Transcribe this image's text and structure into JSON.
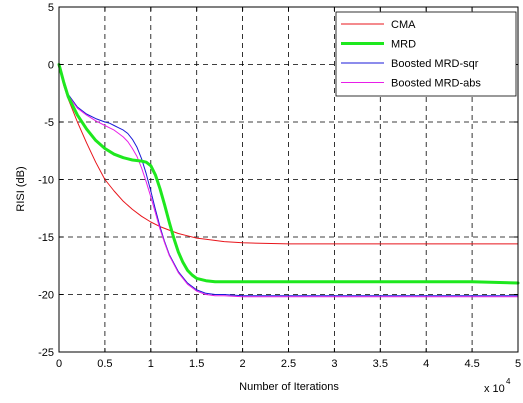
{
  "chart_data": {
    "type": "line",
    "title": "",
    "xlabel": "Number of Iterations",
    "ylabel": "RISI (dB)",
    "x_multiplier_label": "x 10",
    "x_multiplier_exponent": "4",
    "xlim": [
      0,
      5
    ],
    "ylim": [
      -25,
      5
    ],
    "xticks": [
      0,
      0.5,
      1,
      1.5,
      2,
      2.5,
      3,
      3.5,
      4,
      4.5,
      5
    ],
    "xtick_labels": [
      "0",
      "0.5",
      "1",
      "1.5",
      "2",
      "2.5",
      "3",
      "3.5",
      "4",
      "4.5",
      "5"
    ],
    "yticks": [
      -25,
      -20,
      -15,
      -10,
      -5,
      0,
      5
    ],
    "ytick_labels": [
      "-25",
      "-20",
      "-15",
      "-10",
      "-5",
      "0",
      "5"
    ],
    "grid": true,
    "legend_position": "top-right",
    "series": [
      {
        "name": "CMA",
        "color": "#e8151b",
        "width": 1,
        "x": [
          0,
          0.05,
          0.1,
          0.2,
          0.3,
          0.4,
          0.5,
          0.6,
          0.7,
          0.8,
          0.9,
          1.0,
          1.1,
          1.2,
          1.3,
          1.4,
          1.5,
          1.6,
          1.8,
          2.0,
          2.5,
          3.0,
          3.5,
          4.0,
          4.5,
          5.0
        ],
        "y": [
          0,
          -1.8,
          -3.0,
          -5.0,
          -6.8,
          -8.5,
          -10.0,
          -11.0,
          -11.9,
          -12.6,
          -13.2,
          -13.7,
          -14.1,
          -14.4,
          -14.7,
          -14.9,
          -15.1,
          -15.2,
          -15.4,
          -15.5,
          -15.6,
          -15.6,
          -15.6,
          -15.6,
          -15.6,
          -15.6
        ]
      },
      {
        "name": "MRD",
        "color": "#1ee81e",
        "width": 3,
        "x": [
          0,
          0.05,
          0.1,
          0.2,
          0.3,
          0.4,
          0.5,
          0.6,
          0.7,
          0.8,
          0.9,
          0.95,
          1.0,
          1.05,
          1.1,
          1.15,
          1.2,
          1.25,
          1.3,
          1.35,
          1.4,
          1.45,
          1.5,
          1.6,
          1.7,
          1.8,
          2.0,
          2.5,
          3.0,
          3.5,
          4.0,
          4.5,
          5.0
        ],
        "y": [
          0,
          -1.5,
          -2.8,
          -4.4,
          -5.6,
          -6.6,
          -7.3,
          -7.8,
          -8.1,
          -8.3,
          -8.4,
          -8.5,
          -8.8,
          -9.6,
          -10.8,
          -12.2,
          -13.7,
          -15.1,
          -16.3,
          -17.2,
          -17.9,
          -18.3,
          -18.6,
          -18.8,
          -18.9,
          -18.9,
          -18.9,
          -18.9,
          -18.9,
          -18.9,
          -18.9,
          -18.9,
          -19.0
        ]
      },
      {
        "name": "Boosted MRD-sqr",
        "color": "#1a1ad8",
        "width": 1,
        "x": [
          0,
          0.05,
          0.1,
          0.2,
          0.3,
          0.4,
          0.5,
          0.55,
          0.6,
          0.65,
          0.7,
          0.75,
          0.8,
          0.85,
          0.9,
          0.95,
          1.0,
          1.05,
          1.1,
          1.15,
          1.2,
          1.3,
          1.4,
          1.5,
          1.6,
          1.7,
          1.8,
          2.0,
          2.5,
          3.0,
          3.5,
          4.0,
          4.5,
          5.0
        ],
        "y": [
          0,
          -1.6,
          -2.6,
          -3.7,
          -4.3,
          -4.7,
          -5.0,
          -5.1,
          -5.3,
          -5.5,
          -5.7,
          -6.0,
          -6.5,
          -7.2,
          -8.2,
          -9.5,
          -11.0,
          -12.6,
          -14.1,
          -15.4,
          -16.5,
          -18.0,
          -19.0,
          -19.6,
          -19.9,
          -20.0,
          -20.0,
          -20.1,
          -20.1,
          -20.1,
          -20.1,
          -20.1,
          -20.1,
          -20.1
        ]
      },
      {
        "name": "Boosted MRD-abs",
        "color": "#e81ee8",
        "width": 1,
        "x": [
          0,
          0.05,
          0.1,
          0.2,
          0.3,
          0.4,
          0.5,
          0.55,
          0.6,
          0.65,
          0.7,
          0.75,
          0.8,
          0.85,
          0.9,
          0.95,
          1.0,
          1.05,
          1.1,
          1.15,
          1.2,
          1.3,
          1.4,
          1.5,
          1.6,
          1.7,
          1.8,
          2.0,
          2.5,
          3.0,
          3.5,
          4.0,
          4.5,
          5.0
        ],
        "y": [
          0,
          -1.6,
          -2.7,
          -3.8,
          -4.4,
          -4.9,
          -5.3,
          -5.5,
          -5.7,
          -6.0,
          -6.3,
          -6.7,
          -7.3,
          -8.0,
          -9.0,
          -10.2,
          -11.5,
          -12.9,
          -14.3,
          -15.5,
          -16.6,
          -18.1,
          -19.1,
          -19.7,
          -20.0,
          -20.1,
          -20.1,
          -20.2,
          -20.2,
          -20.2,
          -20.2,
          -20.2,
          -20.2,
          -20.2
        ]
      }
    ]
  }
}
